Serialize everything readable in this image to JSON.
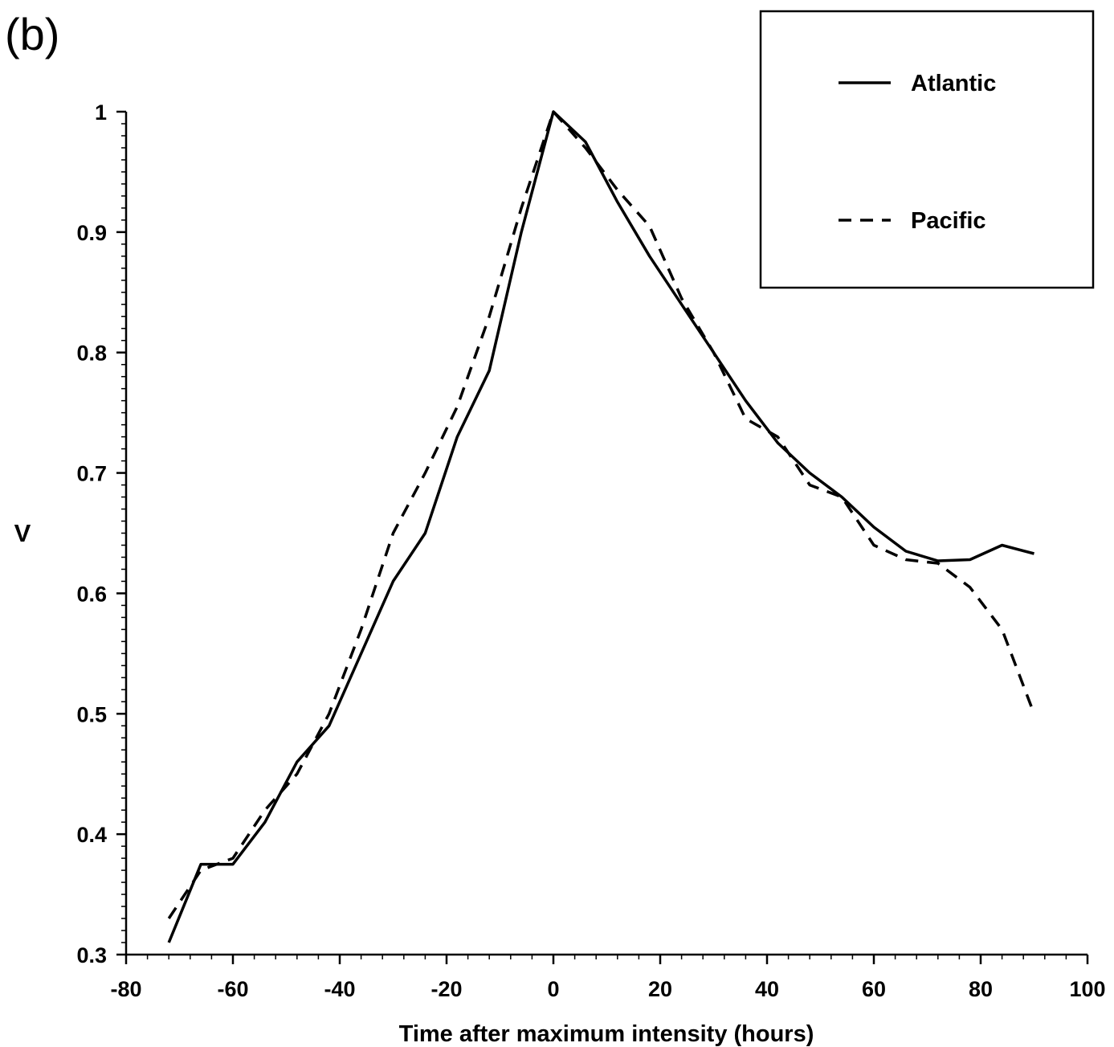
{
  "panel_label": "(b)",
  "chart_data": {
    "type": "line",
    "title": "",
    "xlabel": "Time after maximum intensity (hours)",
    "ylabel": "V",
    "xlim": [
      -80,
      100
    ],
    "ylim": [
      0.3,
      1.0
    ],
    "x_ticks": [
      -80,
      -60,
      -40,
      -20,
      0,
      20,
      40,
      60,
      80,
      100
    ],
    "x_tick_labels": [
      "-80",
      "-60",
      "-40",
      "-20",
      "0",
      "20",
      "40",
      "60",
      "80",
      "100"
    ],
    "y_ticks": [
      0.3,
      0.4,
      0.5,
      0.6,
      0.7,
      0.8,
      0.9,
      1.0
    ],
    "y_tick_labels": [
      "0.3",
      "0.4",
      "0.5",
      "0.6",
      "0.7",
      "0.8",
      "0.9",
      "1"
    ],
    "grid": false,
    "legend_position": "top-right",
    "series": [
      {
        "name": "Atlantic",
        "style": "solid",
        "color": "#000000",
        "x": [
          -72,
          -66,
          -60,
          -54,
          -48,
          -42,
          -36,
          -30,
          -24,
          -18,
          -12,
          -6,
          0,
          6,
          12,
          18,
          24,
          30,
          36,
          42,
          48,
          54,
          60,
          66,
          72,
          78,
          84,
          90
        ],
        "y": [
          0.31,
          0.375,
          0.375,
          0.41,
          0.46,
          0.49,
          0.55,
          0.61,
          0.65,
          0.73,
          0.785,
          0.9,
          1.0,
          0.975,
          0.925,
          0.88,
          0.84,
          0.8,
          0.76,
          0.725,
          0.7,
          0.68,
          0.655,
          0.635,
          0.627,
          0.628,
          0.64,
          0.633
        ]
      },
      {
        "name": "Pacific",
        "style": "dashed",
        "color": "#000000",
        "x": [
          -72,
          -66,
          -60,
          -54,
          -48,
          -42,
          -36,
          -30,
          -24,
          -18,
          -12,
          -6,
          0,
          6,
          12,
          18,
          24,
          30,
          36,
          42,
          48,
          54,
          60,
          66,
          72,
          78,
          84,
          90
        ],
        "y": [
          0.33,
          0.37,
          0.38,
          0.42,
          0.45,
          0.5,
          0.57,
          0.65,
          0.7,
          0.755,
          0.83,
          0.92,
          1.0,
          0.97,
          0.935,
          0.905,
          0.845,
          0.8,
          0.745,
          0.73,
          0.69,
          0.68,
          0.64,
          0.628,
          0.625,
          0.605,
          0.57,
          0.5
        ]
      }
    ]
  }
}
